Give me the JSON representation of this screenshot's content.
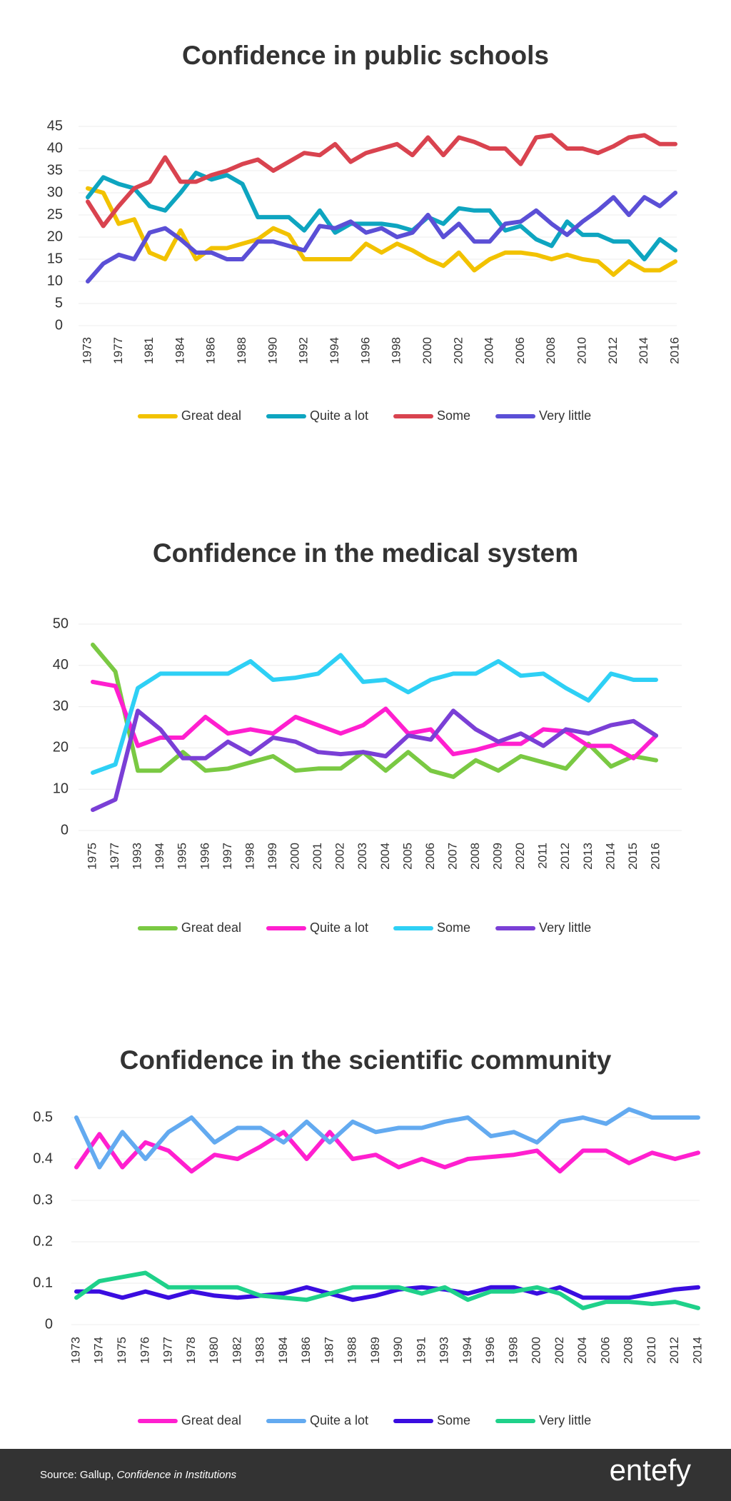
{
  "chart_data": [
    {
      "type": "line",
      "title": "Confidence in public schools",
      "categories": [
        "1973",
        null,
        "1977",
        null,
        "1981",
        null,
        "1984",
        null,
        "1986",
        null,
        "1988",
        null,
        "1990",
        null,
        "1992",
        null,
        "1994",
        null,
        "1996",
        null,
        "1998",
        null,
        "2000",
        null,
        "2002",
        null,
        "2004",
        null,
        "2006",
        null,
        "2008",
        null,
        "2010",
        null,
        "2012",
        null,
        "2014",
        null,
        "2016"
      ],
      "ylim": [
        0,
        45
      ],
      "yticks": [
        0,
        5,
        10,
        15,
        20,
        25,
        30,
        35,
        40,
        45
      ],
      "grid": true,
      "series": [
        {
          "name": "Great deal",
          "color": "#f2c200",
          "values": [
            31,
            30,
            23,
            24,
            16.5,
            15,
            21.5,
            15,
            17.5,
            17.5,
            18.5,
            19.5,
            22,
            20.5,
            15,
            15,
            15,
            15,
            18.5,
            16.5,
            18.5,
            17,
            15,
            13.5,
            16.5,
            12.5,
            15,
            16.5,
            16.5,
            16,
            15,
            16,
            15,
            14.5,
            11.5,
            14.5,
            12.5,
            12.5,
            14.5
          ]
        },
        {
          "name": "Quite a lot",
          "color": "#0ea5c0",
          "values": [
            29,
            33.5,
            32,
            31,
            27,
            26,
            30,
            34.5,
            33,
            34,
            32,
            24.5,
            24.5,
            24.5,
            21.5,
            26,
            21,
            23,
            23,
            23,
            22.5,
            21.5,
            24.5,
            23,
            26.5,
            26,
            26,
            21.5,
            22.5,
            19.5,
            18,
            23.5,
            20.5,
            20.5,
            19,
            19,
            15,
            19.5,
            17
          ]
        },
        {
          "name": "Some",
          "color": "#d9434f",
          "values": [
            28,
            22.5,
            27,
            31,
            32.5,
            38,
            32.5,
            32.5,
            34,
            35,
            36.5,
            37.5,
            35,
            37,
            39,
            38.5,
            41,
            37,
            39,
            40,
            41,
            38.5,
            42.5,
            38.5,
            42.5,
            41.5,
            40,
            40,
            36.5,
            42.5,
            43,
            40,
            40,
            39,
            40.5,
            42.5,
            43,
            41,
            41
          ]
        },
        {
          "name": "Very little",
          "color": "#5b4fd6",
          "values": [
            10,
            14,
            16,
            15,
            21,
            22,
            19.5,
            16.5,
            16.5,
            15,
            15,
            19,
            19,
            18,
            17,
            22.5,
            22,
            23.5,
            21,
            22,
            20,
            21,
            25,
            20,
            23,
            19,
            19,
            23,
            23.5,
            26,
            23,
            20.5,
            23.5,
            26,
            29,
            25,
            29,
            27,
            30
          ]
        }
      ]
    },
    {
      "type": "line",
      "title": "Confidence in the medical system",
      "categories": [
        "1975",
        "1977",
        "1993",
        "1994",
        "1995",
        "1996",
        "1997",
        "1998",
        "1999",
        "2000",
        "2001",
        "2002",
        "2003",
        "2004",
        "2005",
        "2006",
        "2007",
        "2008",
        "2009",
        "2020",
        "2011",
        "2012",
        "2013",
        "2014",
        "2015",
        "2016"
      ],
      "ylim": [
        0,
        50
      ],
      "yticks": [
        0,
        10,
        20,
        30,
        40,
        50
      ],
      "grid": true,
      "series": [
        {
          "name": "Great deal",
          "color": "#7ac943",
          "values": [
            45,
            38.5,
            14.5,
            14.5,
            19,
            14.5,
            15,
            16.5,
            18,
            14.5,
            15,
            15,
            19,
            14.5,
            19,
            14.5,
            13,
            17,
            14.5,
            18,
            16.5,
            15,
            21,
            15.5,
            18,
            17
          ]
        },
        {
          "name": "Quite a lot",
          "color": "#ff1fcf",
          "values": [
            36,
            35,
            20.5,
            22.5,
            22.5,
            27.5,
            23.5,
            24.5,
            23.5,
            27.5,
            25.5,
            23.5,
            25.5,
            29.5,
            23.5,
            24.5,
            18.5,
            19.5,
            21,
            21,
            24.5,
            24,
            20.5,
            20.5,
            17.5,
            23
          ]
        },
        {
          "name": "Some",
          "color": "#2ed0f5",
          "values": [
            14,
            16,
            34.5,
            38,
            38,
            38,
            38,
            41,
            36.5,
            37,
            38,
            42.5,
            36,
            36.5,
            33.5,
            36.5,
            38,
            38,
            41,
            37.5,
            38,
            34.5,
            31.5,
            38,
            36.5,
            36.5
          ]
        },
        {
          "name": "Very little",
          "color": "#7a3fd6",
          "values": [
            5,
            7.5,
            29,
            24.5,
            17.5,
            17.5,
            21.5,
            18.5,
            22.5,
            21.5,
            19,
            18.5,
            19,
            18,
            23,
            22,
            29,
            24.5,
            21.5,
            23.5,
            20.5,
            24.5,
            23.5,
            25.5,
            26.5,
            23
          ]
        }
      ]
    },
    {
      "type": "line",
      "title": "Confidence in the scientific community",
      "categories": [
        "1973",
        "1974",
        "1975",
        "1976",
        "1977",
        "1978",
        "1980",
        "1982",
        "1983",
        "1984",
        "1986",
        "1987",
        "1988",
        "1989",
        "1990",
        "1991",
        "1993",
        "1994",
        "1996",
        "1998",
        "2000",
        "2002",
        "2004",
        "2006",
        "2008",
        "2010",
        "2012",
        "2014"
      ],
      "ylim": [
        0,
        0.5
      ],
      "yticks": [
        0,
        0.1,
        0.2,
        0.3,
        0.4,
        0.5
      ],
      "grid": true,
      "series": [
        {
          "name": "Great deal",
          "color": "#ff1fcf",
          "values": [
            0.38,
            0.46,
            0.38,
            0.44,
            0.42,
            0.37,
            0.41,
            0.4,
            0.43,
            0.465,
            0.4,
            0.465,
            0.4,
            0.41,
            0.38,
            0.4,
            0.38,
            0.4,
            0.405,
            0.41,
            0.42,
            0.37,
            0.42,
            0.42,
            0.39,
            0.415,
            0.4,
            0.415
          ]
        },
        {
          "name": "Quite a lot",
          "color": "#63aaf0",
          "values": [
            0.5,
            0.38,
            0.465,
            0.4,
            0.465,
            0.5,
            0.44,
            0.475,
            0.475,
            0.44,
            0.49,
            0.44,
            0.49,
            0.465,
            0.475,
            0.475,
            0.49,
            0.5,
            0.455,
            0.465,
            0.44,
            0.49,
            0.5,
            0.485,
            0.52,
            0.5,
            0.5,
            0.5
          ]
        },
        {
          "name": "Some",
          "color": "#3a0de0",
          "values": [
            0.08,
            0.08,
            0.065,
            0.08,
            0.065,
            0.08,
            0.07,
            0.065,
            0.07,
            0.075,
            0.09,
            0.075,
            0.06,
            0.07,
            0.085,
            0.09,
            0.085,
            0.075,
            0.09,
            0.09,
            0.075,
            0.09,
            0.065,
            0.065,
            0.065,
            0.075,
            0.085,
            0.09
          ]
        },
        {
          "name": "Very little",
          "color": "#1fd18a",
          "values": [
            0.065,
            0.105,
            0.115,
            0.125,
            0.09,
            0.09,
            0.09,
            0.09,
            0.07,
            0.065,
            0.06,
            0.075,
            0.09,
            0.09,
            0.09,
            0.075,
            0.09,
            0.06,
            0.08,
            0.08,
            0.09,
            0.075,
            0.04,
            0.055,
            0.055,
            0.05,
            0.055,
            0.04
          ]
        }
      ]
    }
  ],
  "footer": {
    "source": "Source: Gallup,",
    "source_title": "Confidence in Institutions",
    "logo": "entefy"
  }
}
